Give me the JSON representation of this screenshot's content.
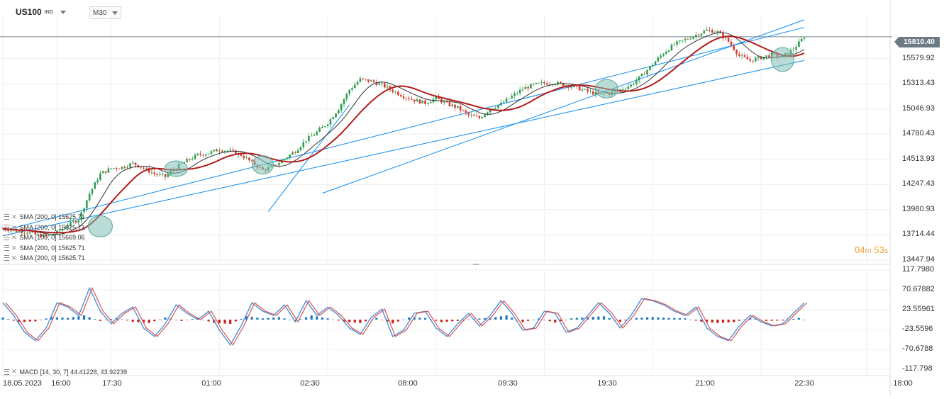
{
  "header": {
    "symbol": "US100",
    "symbol_type": "IND",
    "timeframe": "M30"
  },
  "countdown": {
    "minutes": "04",
    "m_unit": "m",
    "seconds": "53",
    "s_unit": "s"
  },
  "last_price": "15810.40",
  "indicators": [
    {
      "label": "SMA",
      "params": "[200, 0]",
      "value": "15625.71"
    },
    {
      "label": "SMA",
      "params": "[200, 0]",
      "value": "15625.71"
    },
    {
      "label": "SMA",
      "params": "[100, 0]",
      "value": "15669.06"
    },
    {
      "label": "SMA",
      "params": "[200, 0]",
      "value": "15625.71"
    },
    {
      "label": "SMA",
      "params": "[200, 0]",
      "value": "15625.71"
    }
  ],
  "macd_label": "MACD",
  "macd_params": "[14, 30, 7]",
  "macd_values": "44.41228,  43.92239",
  "colors": {
    "sma_fast": "#333333",
    "sma_slow": "#b31b1b",
    "channel": "#2196f3",
    "candle_up": "#2e9e4f",
    "candle_down": "#d63a2e",
    "histogram_pos": "#1f78c1",
    "histogram_neg": "#cc1f1f",
    "macd_line": "#4a90d9",
    "signal_line": "#d9534f",
    "highlight": "#7fbfb5"
  },
  "chart_data": [
    {
      "type": "line",
      "name": "price",
      "y_ticks": [
        "15579.92",
        "15313.43",
        "15046.93",
        "14780.43",
        "14513.93",
        "14247.43",
        "13980.93",
        "13714.44",
        "13447.94"
      ],
      "ylim": [
        13447.94,
        15980
      ],
      "x_ticks": [
        "18.05.2023",
        "16:00",
        "17:30",
        "01:00",
        "02:30",
        "08:00",
        "09:30",
        "19:30",
        "21:00",
        "22:30",
        "18:00"
      ],
      "last": 15810.4,
      "close_points": [
        [
          0,
          13780
        ],
        [
          4,
          13760
        ],
        [
          8,
          13750
        ],
        [
          12,
          13720
        ],
        [
          16,
          13700
        ],
        [
          20,
          13740
        ],
        [
          24,
          13820
        ],
        [
          28,
          13880
        ],
        [
          32,
          14150
        ],
        [
          36,
          14360
        ],
        [
          40,
          14420
        ],
        [
          44,
          14430
        ],
        [
          48,
          14470
        ],
        [
          52,
          14420
        ],
        [
          56,
          14360
        ],
        [
          60,
          14330
        ],
        [
          64,
          14430
        ],
        [
          68,
          14500
        ],
        [
          72,
          14560
        ],
        [
          76,
          14580
        ],
        [
          80,
          14620
        ],
        [
          84,
          14600
        ],
        [
          88,
          14560
        ],
        [
          92,
          14480
        ],
        [
          96,
          14400
        ],
        [
          100,
          14440
        ],
        [
          104,
          14520
        ],
        [
          108,
          14600
        ],
        [
          112,
          14720
        ],
        [
          116,
          14800
        ],
        [
          120,
          14900
        ],
        [
          124,
          15050
        ],
        [
          128,
          15250
        ],
        [
          132,
          15360
        ],
        [
          136,
          15340
        ],
        [
          140,
          15300
        ],
        [
          144,
          15240
        ],
        [
          148,
          15180
        ],
        [
          152,
          15140
        ],
        [
          156,
          15110
        ],
        [
          160,
          15160
        ],
        [
          164,
          15100
        ],
        [
          168,
          15060
        ],
        [
          172,
          14980
        ],
        [
          176,
          14950
        ],
        [
          180,
          15050
        ],
        [
          184,
          15100
        ],
        [
          188,
          15180
        ],
        [
          192,
          15260
        ],
        [
          196,
          15300
        ],
        [
          200,
          15320
        ],
        [
          204,
          15320
        ],
        [
          208,
          15300
        ],
        [
          212,
          15270
        ],
        [
          216,
          15230
        ],
        [
          220,
          15200
        ],
        [
          224,
          15210
        ],
        [
          228,
          15250
        ],
        [
          232,
          15300
        ],
        [
          236,
          15400
        ],
        [
          240,
          15520
        ],
        [
          244,
          15640
        ],
        [
          248,
          15730
        ],
        [
          252,
          15780
        ],
        [
          256,
          15830
        ],
        [
          260,
          15880
        ],
        [
          264,
          15860
        ],
        [
          268,
          15760
        ],
        [
          272,
          15610
        ],
        [
          276,
          15560
        ],
        [
          280,
          15590
        ],
        [
          284,
          15620
        ],
        [
          288,
          15600
        ],
        [
          292,
          15680
        ],
        [
          296,
          15810
        ]
      ]
    },
    {
      "type": "bar",
      "name": "MACD",
      "y_ticks": [
        "117.7980",
        "70.67882",
        "23.55961",
        "-23.5596",
        "-70.6788",
        "-117.798"
      ],
      "ylim": [
        -117.798,
        117.798
      ],
      "macd_line": [
        [
          0,
          40
        ],
        [
          4,
          10
        ],
        [
          8,
          -30
        ],
        [
          12,
          -50
        ],
        [
          16,
          -20
        ],
        [
          20,
          40
        ],
        [
          24,
          30
        ],
        [
          28,
          10
        ],
        [
          32,
          75
        ],
        [
          36,
          20
        ],
        [
          40,
          -10
        ],
        [
          44,
          15
        ],
        [
          48,
          30
        ],
        [
          52,
          -20
        ],
        [
          56,
          -40
        ],
        [
          60,
          -10
        ],
        [
          64,
          35
        ],
        [
          68,
          15
        ],
        [
          72,
          0
        ],
        [
          76,
          20
        ],
        [
          80,
          -25
        ],
        [
          84,
          -60
        ],
        [
          88,
          -15
        ],
        [
          92,
          40
        ],
        [
          96,
          20
        ],
        [
          100,
          10
        ],
        [
          104,
          35
        ],
        [
          108,
          -5
        ],
        [
          112,
          45
        ],
        [
          116,
          10
        ],
        [
          120,
          30
        ],
        [
          124,
          10
        ],
        [
          128,
          -20
        ],
        [
          132,
          -35
        ],
        [
          136,
          5
        ],
        [
          140,
          25
        ],
        [
          144,
          -40
        ],
        [
          148,
          -25
        ],
        [
          152,
          15
        ],
        [
          156,
          20
        ],
        [
          160,
          -20
        ],
        [
          164,
          -40
        ],
        [
          168,
          -10
        ],
        [
          172,
          15
        ],
        [
          176,
          -15
        ],
        [
          180,
          10
        ],
        [
          184,
          45
        ],
        [
          188,
          15
        ],
        [
          192,
          -25
        ],
        [
          196,
          -20
        ],
        [
          200,
          20
        ],
        [
          204,
          15
        ],
        [
          208,
          -30
        ],
        [
          212,
          -20
        ],
        [
          216,
          10
        ],
        [
          220,
          40
        ],
        [
          224,
          15
        ],
        [
          228,
          -20
        ],
        [
          232,
          10
        ],
        [
          236,
          50
        ],
        [
          240,
          45
        ],
        [
          244,
          35
        ],
        [
          248,
          20
        ],
        [
          252,
          10
        ],
        [
          256,
          30
        ],
        [
          260,
          -20
        ],
        [
          264,
          -40
        ],
        [
          268,
          -50
        ],
        [
          272,
          -15
        ],
        [
          276,
          10
        ],
        [
          280,
          -5
        ],
        [
          284,
          -15
        ],
        [
          288,
          -10
        ],
        [
          292,
          15
        ],
        [
          296,
          40
        ]
      ],
      "histogram": [
        [
          0,
          5
        ],
        [
          6,
          -6
        ],
        [
          12,
          -4
        ],
        [
          18,
          6
        ],
        [
          24,
          4
        ],
        [
          30,
          10
        ],
        [
          36,
          -3
        ],
        [
          42,
          4
        ],
        [
          48,
          -5
        ],
        [
          54,
          -8
        ],
        [
          60,
          5
        ],
        [
          66,
          -3
        ],
        [
          72,
          4
        ],
        [
          78,
          -8
        ],
        [
          84,
          -10
        ],
        [
          90,
          8
        ],
        [
          96,
          3
        ],
        [
          102,
          6
        ],
        [
          108,
          -3
        ],
        [
          114,
          10
        ],
        [
          120,
          3
        ],
        [
          126,
          -5
        ],
        [
          132,
          -8
        ],
        [
          138,
          4
        ],
        [
          144,
          -9
        ],
        [
          150,
          5
        ],
        [
          156,
          4
        ],
        [
          162,
          -6
        ],
        [
          168,
          -3
        ],
        [
          174,
          2
        ],
        [
          180,
          4
        ],
        [
          186,
          10
        ],
        [
          192,
          -6
        ],
        [
          198,
          3
        ],
        [
          204,
          -7
        ],
        [
          210,
          3
        ],
        [
          216,
          6
        ],
        [
          222,
          8
        ],
        [
          228,
          -5
        ],
        [
          234,
          4
        ],
        [
          240,
          6
        ],
        [
          246,
          4
        ],
        [
          252,
          3
        ],
        [
          258,
          -5
        ],
        [
          264,
          -8
        ],
        [
          270,
          -6
        ],
        [
          276,
          4
        ],
        [
          282,
          -3
        ],
        [
          288,
          -2
        ],
        [
          294,
          4
        ]
      ]
    }
  ]
}
